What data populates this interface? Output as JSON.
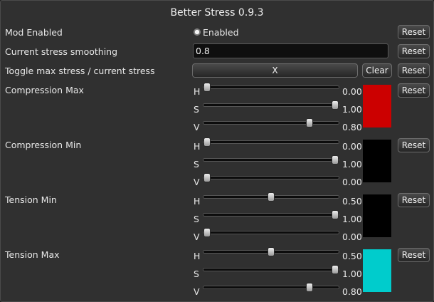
{
  "window": {
    "title": "Better Stress 0.9.3"
  },
  "rows": {
    "mod_enabled": {
      "label": "Mod Enabled",
      "toggle_label": "Enabled",
      "checked": true,
      "reset": "Reset"
    },
    "smoothing": {
      "label": "Current stress smoothing",
      "value": "0.8",
      "reset": "Reset"
    },
    "toggle_max": {
      "label": "Toggle max stress / current stress",
      "key": "X",
      "clear": "Clear",
      "reset": "Reset"
    }
  },
  "colors": [
    {
      "label": "Compression Max",
      "reset": "Reset",
      "swatch": "#cc0000",
      "channels": [
        {
          "name": "H",
          "value": "0.00",
          "level": 0.0
        },
        {
          "name": "S",
          "value": "1.00",
          "level": 1.0
        },
        {
          "name": "V",
          "value": "0.80",
          "level": 0.8
        }
      ]
    },
    {
      "label": "Compression Min",
      "reset": "Reset",
      "swatch": "#000000",
      "channels": [
        {
          "name": "H",
          "value": "0.00",
          "level": 0.0
        },
        {
          "name": "S",
          "value": "1.00",
          "level": 1.0
        },
        {
          "name": "V",
          "value": "0.00",
          "level": 0.0
        }
      ]
    },
    {
      "label": "Tension Min",
      "reset": "Reset",
      "swatch": "#000000",
      "channels": [
        {
          "name": "H",
          "value": "0.50",
          "level": 0.5
        },
        {
          "name": "S",
          "value": "1.00",
          "level": 1.0
        },
        {
          "name": "V",
          "value": "0.00",
          "level": 0.0
        }
      ]
    },
    {
      "label": "Tension Max",
      "reset": "Reset",
      "swatch": "#00cccc",
      "channels": [
        {
          "name": "H",
          "value": "0.50",
          "level": 0.5
        },
        {
          "name": "S",
          "value": "1.00",
          "level": 1.0
        },
        {
          "name": "V",
          "value": "0.80",
          "level": 0.8
        }
      ]
    }
  ]
}
